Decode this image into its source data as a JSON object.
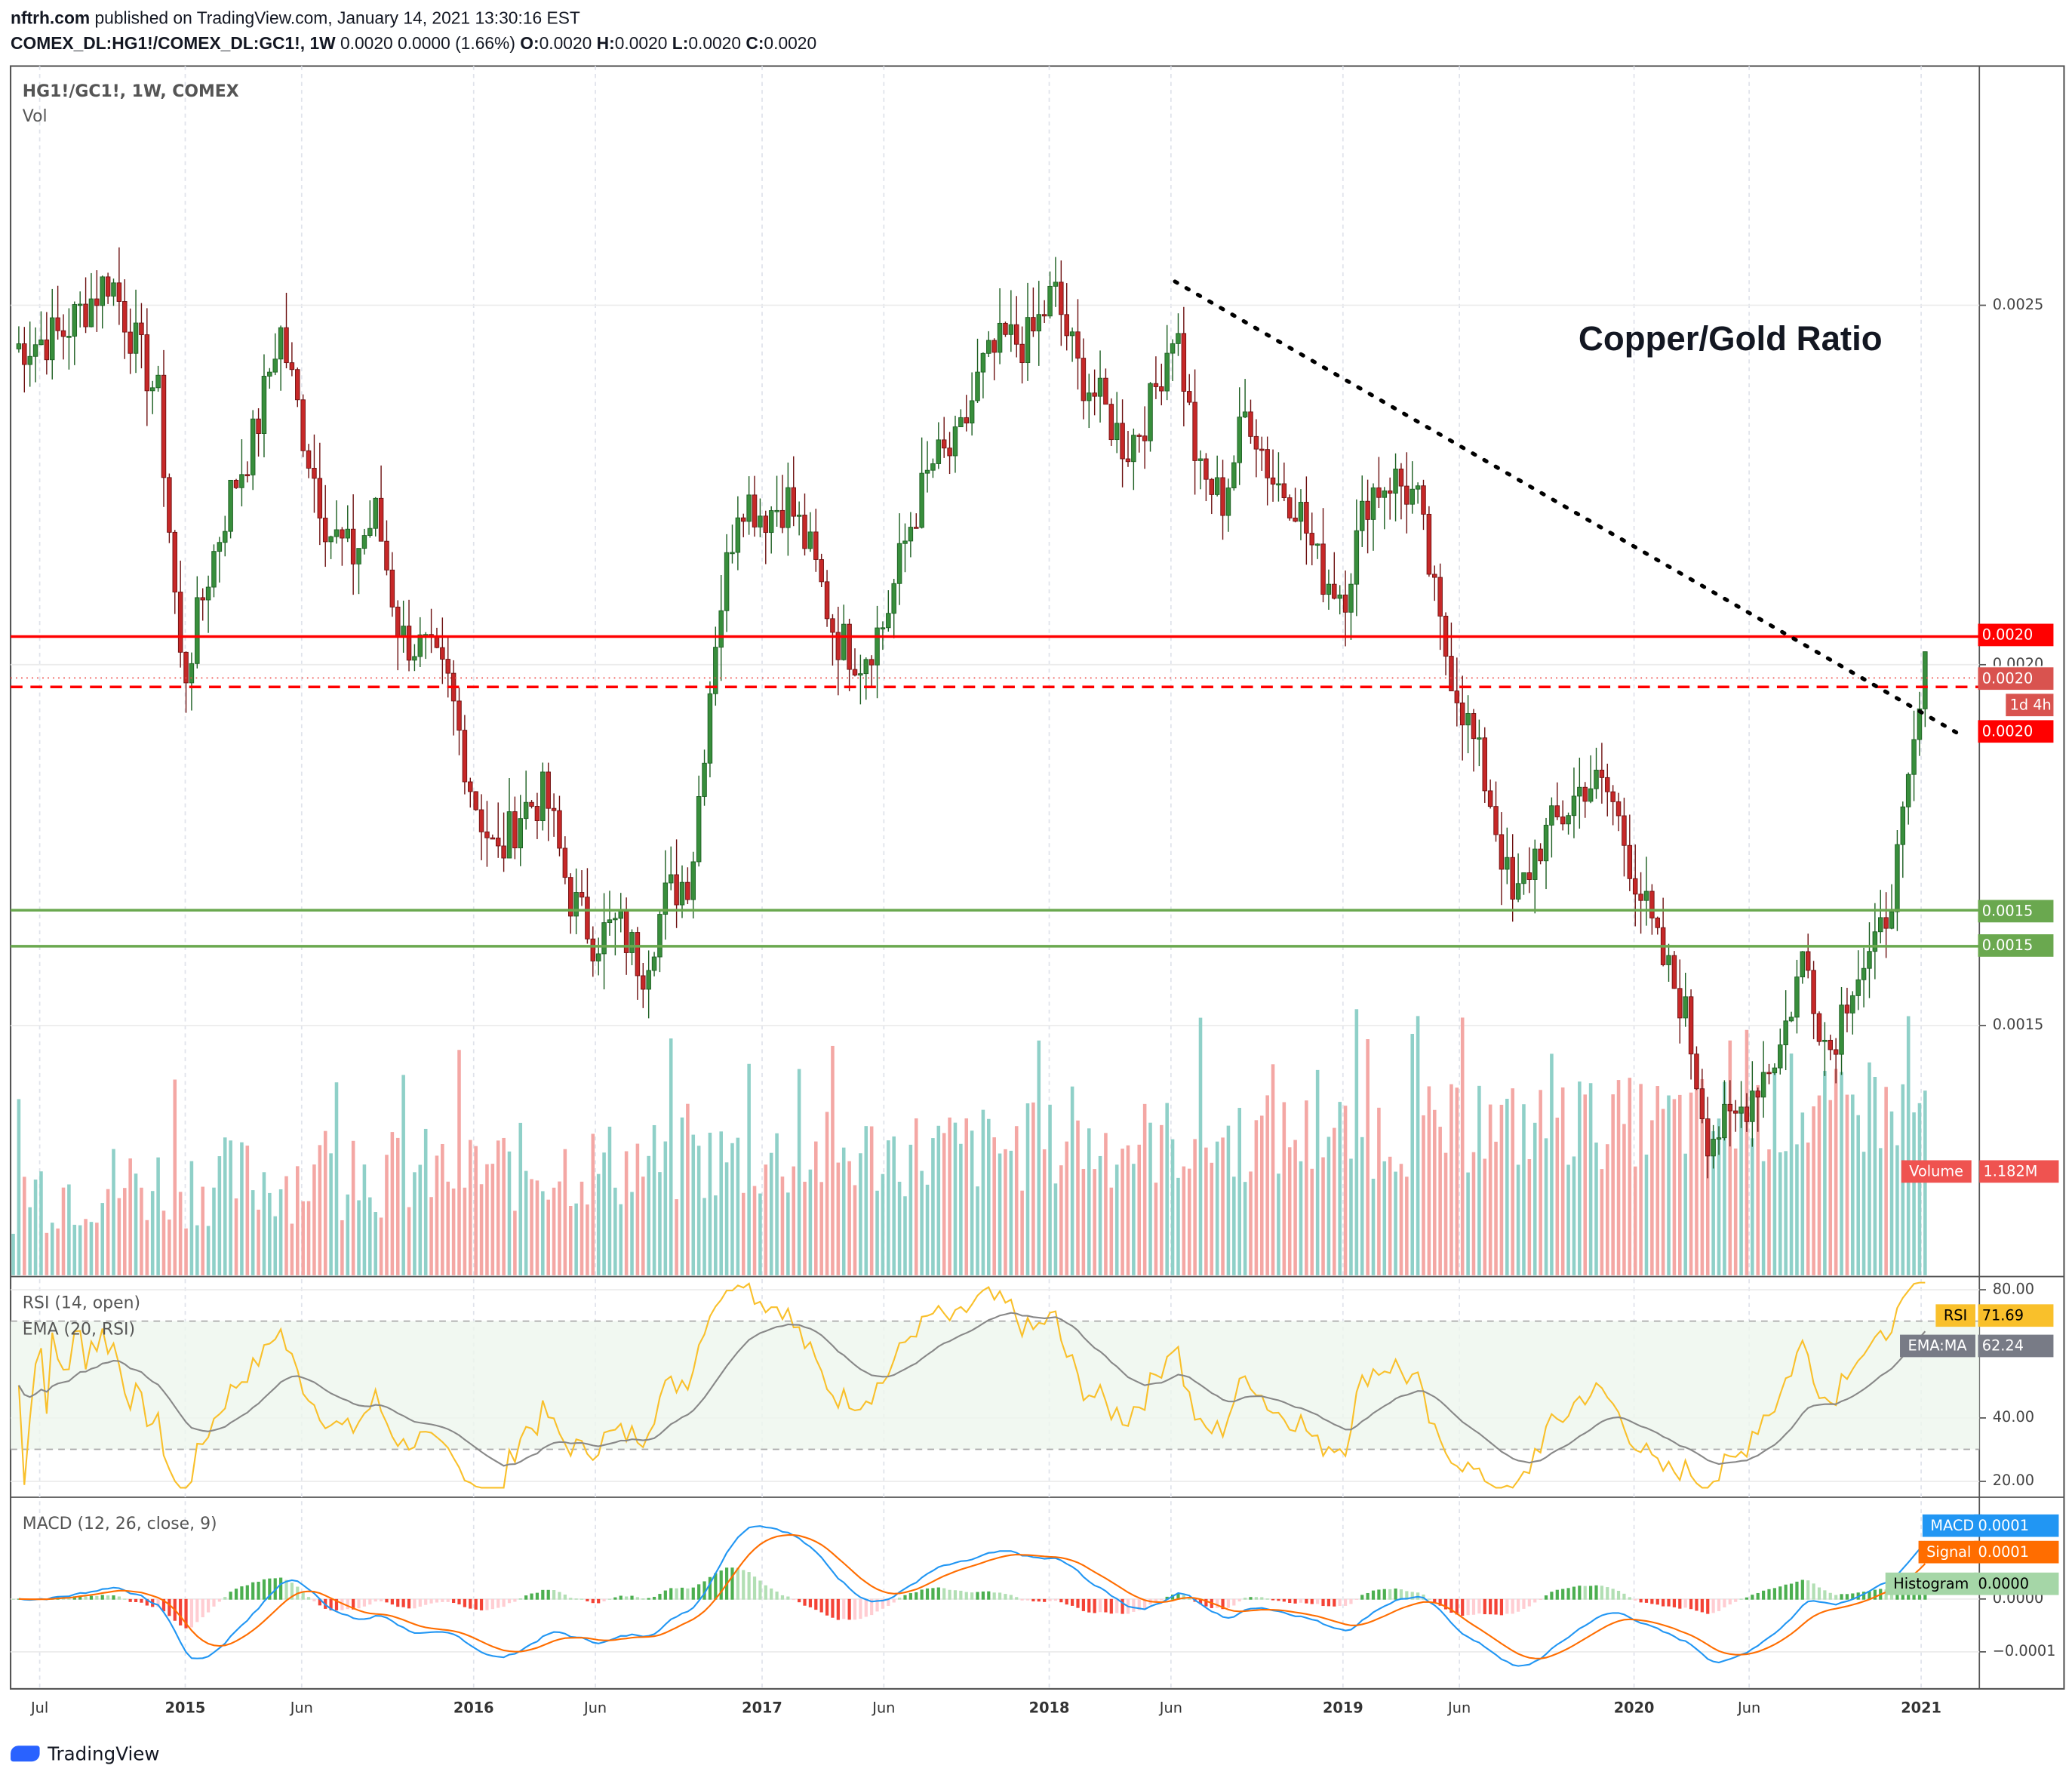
{
  "header": {
    "publisher": "nftrh.com",
    "published": " published on TradingView.com, January 14, 2021 13:30:16 EST",
    "symbol": "COMEX_DL:HG1!/COMEX_DL:GC1!, 1W",
    "quote": " 0.0020 0.0000 (1.66%) ",
    "o_label": "O:",
    "o": "0.0020 ",
    "h_label": "H:",
    "h": "0.0020 ",
    "l_label": "L:",
    "l": "0.0020 ",
    "c_label": "C:",
    "c": "0.0020"
  },
  "legend": {
    "main": "HG1!/GC1!, 1W, COMEX",
    "vol": "Vol",
    "rsi": "RSI (14, open)",
    "ema": "EMA (20, RSI)",
    "macd": "MACD (12, 26, close, 9)"
  },
  "annotation": "Copper/Gold Ratio",
  "price_axis": [
    "0.0025",
    "0.0020",
    "0.0015"
  ],
  "price_tags": {
    "resistance": "0.0020",
    "last": "0.0020",
    "countdown": "1d 4h",
    "dashed": "0.0020",
    "support1": "0.0015",
    "support2": "0.0015",
    "volume_label": "Volume",
    "volume": "1.182M"
  },
  "rsi_axis": [
    "80.00",
    "40.00",
    "20.00"
  ],
  "rsi_tags": {
    "rsi_label": "RSI",
    "rsi": "71.69",
    "ema_label": "EMA:MA",
    "ema": "62.24"
  },
  "macd_axis": [
    "0.0000",
    "−0.0001"
  ],
  "macd_tags": {
    "macd_label": "MACD",
    "macd": "0.0001",
    "signal_label": "Signal",
    "signal": "0.0001",
    "hist_label": "Histogram",
    "hist": "0.0000"
  },
  "x_axis": [
    "Jul",
    "2015",
    "Jun",
    "2016",
    "Jun",
    "2017",
    "Jun",
    "2018",
    "Jun",
    "2019",
    "Jun",
    "2020",
    "Jun",
    "2021"
  ],
  "footer": "TradingView",
  "colors": {
    "up": "#26a69a",
    "up_body": "#388e3c",
    "down": "#c62828",
    "resistance": "#ff0000",
    "support": "#6aa84f",
    "rsi": "#f9c02b",
    "ema": "#888888",
    "macd": "#2196f3",
    "signal": "#ff6d00"
  },
  "chart_data": {
    "type": "candlestick",
    "interval": "1W",
    "start": "2014-06",
    "sampling": "approximate monthly close",
    "values": [
      0.00244,
      0.00245,
      0.00246,
      0.0025,
      0.00254,
      0.00245,
      0.00237,
      0.00197,
      0.00212,
      0.00224,
      0.00232,
      0.00247,
      0.00232,
      0.00219,
      0.00215,
      0.00221,
      0.00204,
      0.00202,
      0.00197,
      0.00182,
      0.00173,
      0.0018,
      0.00182,
      0.00168,
      0.00162,
      0.00164,
      0.00158,
      0.00168,
      0.00171,
      0.00204,
      0.00224,
      0.00221,
      0.00223,
      0.00215,
      0.00204,
      0.00201,
      0.00206,
      0.00219,
      0.00228,
      0.0023,
      0.00241,
      0.00245,
      0.00245,
      0.00252,
      0.00241,
      0.00236,
      0.0023,
      0.00236,
      0.00248,
      0.00226,
      0.00223,
      0.00236,
      0.00226,
      0.00223,
      0.00213,
      0.0021,
      0.00224,
      0.00226,
      0.00223,
      0.00204,
      0.00193,
      0.00182,
      0.00166,
      0.00175,
      0.00179,
      0.00184,
      0.00182,
      0.00171,
      0.0016,
      0.00153,
      0.00135,
      0.00136,
      0.00142,
      0.00147,
      0.0016,
      0.00146,
      0.00157,
      0.0016,
      0.00175,
      0.00199
    ],
    "horizontal_lines": [
      {
        "style": "solid",
        "color": "#ff0000",
        "value": 0.00204
      },
      {
        "style": "dashed",
        "color": "#ff0000",
        "value": 0.00197
      },
      {
        "style": "solid",
        "color": "#6aa84f",
        "value": 0.00166
      },
      {
        "style": "solid",
        "color": "#6aa84f",
        "value": 0.00161
      }
    ],
    "trendline": {
      "style": "dotted",
      "from": [
        "2018-06",
        0.00253
      ],
      "to": [
        "2021-02",
        0.0019
      ]
    },
    "rsi_levels": [
      30,
      70
    ],
    "macd_zero": 0
  }
}
